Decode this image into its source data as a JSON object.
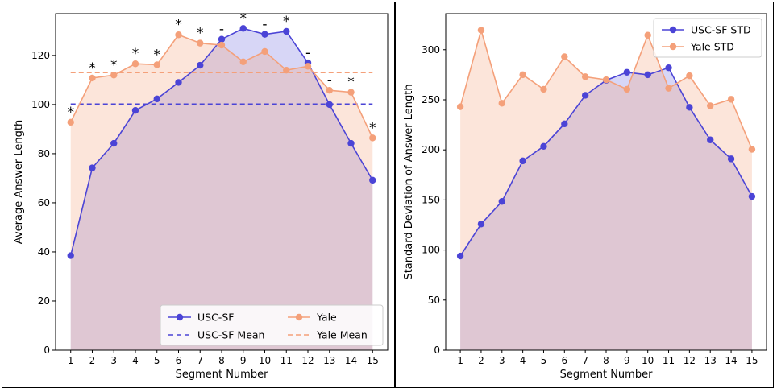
{
  "chart_data": [
    {
      "type": "line",
      "title": "",
      "xlabel": "Segment Number",
      "ylabel": "Average Answer Length",
      "x": [
        1,
        2,
        3,
        4,
        5,
        6,
        7,
        8,
        9,
        10,
        11,
        12,
        13,
        14,
        15
      ],
      "xlim": [
        0.3,
        15.7
      ],
      "ylim": [
        0,
        137
      ],
      "yticks": [
        0,
        20,
        40,
        60,
        80,
        100,
        120
      ],
      "series": [
        {
          "name": "USC-SF",
          "color": "#4b44d6",
          "fill": "#ccccf0",
          "values": [
            38.5,
            74.2,
            84.2,
            97.6,
            102.3,
            109.0,
            116.0,
            126.6,
            131.0,
            128.6,
            129.8,
            117.0,
            100.0,
            84.2,
            69.2
          ]
        },
        {
          "name": "Yale",
          "color": "#f4a07a",
          "fill": "#fce3d6",
          "values": [
            92.8,
            110.8,
            112.0,
            116.6,
            116.2,
            128.4,
            125.0,
            124.2,
            117.4,
            121.6,
            114.0,
            115.6,
            105.8,
            105.0,
            86.4
          ]
        }
      ],
      "reference_lines": [
        {
          "name": "USC-SF Mean",
          "value": 100.2,
          "color": "#4b44d6",
          "style": "dashed"
        },
        {
          "name": "Yale Mean",
          "value": 113.0,
          "color": "#f4a07a",
          "style": "dashed"
        }
      ],
      "annotations": [
        "*",
        "*",
        "*",
        "*",
        "*",
        "*",
        "*",
        "-",
        "*",
        "-",
        "*",
        "-",
        "-",
        "*",
        "*"
      ],
      "legend": "lower-right",
      "grid": false
    },
    {
      "type": "line",
      "title": "",
      "xlabel": "Segment Number",
      "ylabel": "Standard Deviation of Answer Length",
      "x": [
        1,
        2,
        3,
        4,
        5,
        6,
        7,
        8,
        9,
        10,
        11,
        12,
        13,
        14,
        15
      ],
      "xlim": [
        0.3,
        15.7
      ],
      "ylim": [
        0,
        336
      ],
      "yticks": [
        0,
        50,
        100,
        150,
        200,
        250,
        300
      ],
      "series": [
        {
          "name": "USC-SF STD",
          "color": "#4b44d6",
          "fill": "#ccccf0",
          "values": [
            94,
            126,
            148.5,
            189,
            203.5,
            226,
            254.5,
            269.5,
            277.5,
            275,
            282,
            242.5,
            210,
            191,
            153.5
          ]
        },
        {
          "name": "Yale STD",
          "color": "#f4a07a",
          "fill": "#fce3d6",
          "values": [
            243,
            319.5,
            246.5,
            275,
            260.5,
            293,
            273,
            270,
            260.5,
            314.5,
            261.5,
            274,
            244,
            250.5,
            200.5
          ]
        }
      ],
      "legend": "top-right",
      "grid": false
    }
  ]
}
